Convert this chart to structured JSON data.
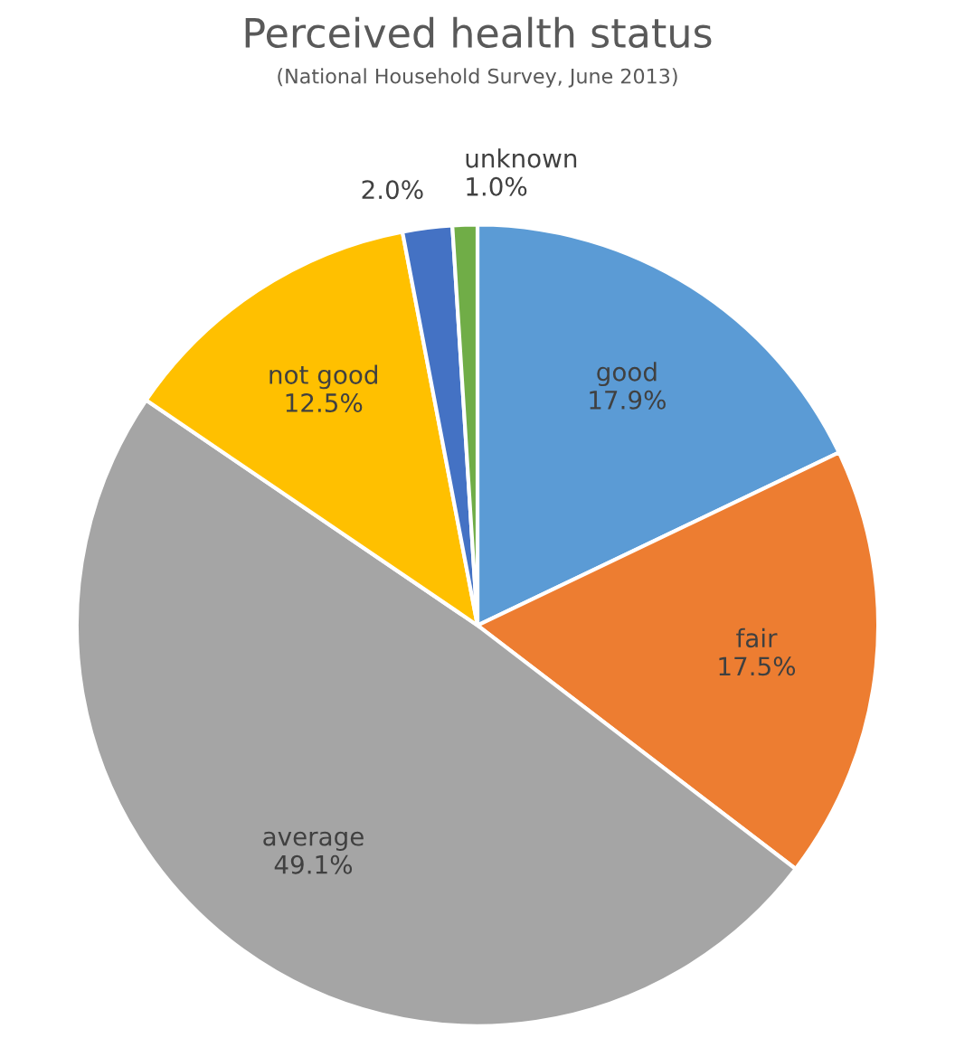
{
  "chart_data": {
    "type": "pie",
    "title": "Perceived health status",
    "subtitle": "(National Household Survey, June 2013)",
    "categories": [
      "good",
      "fair",
      "average",
      "not good",
      null,
      "unknown"
    ],
    "values": [
      17.9,
      17.5,
      49.1,
      12.5,
      2.0,
      1.0
    ],
    "value_labels": [
      "17.9%",
      "17.5%",
      "49.1%",
      "12.5%",
      "2.0%",
      "1.0%"
    ],
    "colors": [
      "#5b9bd5",
      "#ed7d31",
      "#a5a5a5",
      "#ffc000",
      "#4472c4",
      "#70ad47"
    ]
  }
}
